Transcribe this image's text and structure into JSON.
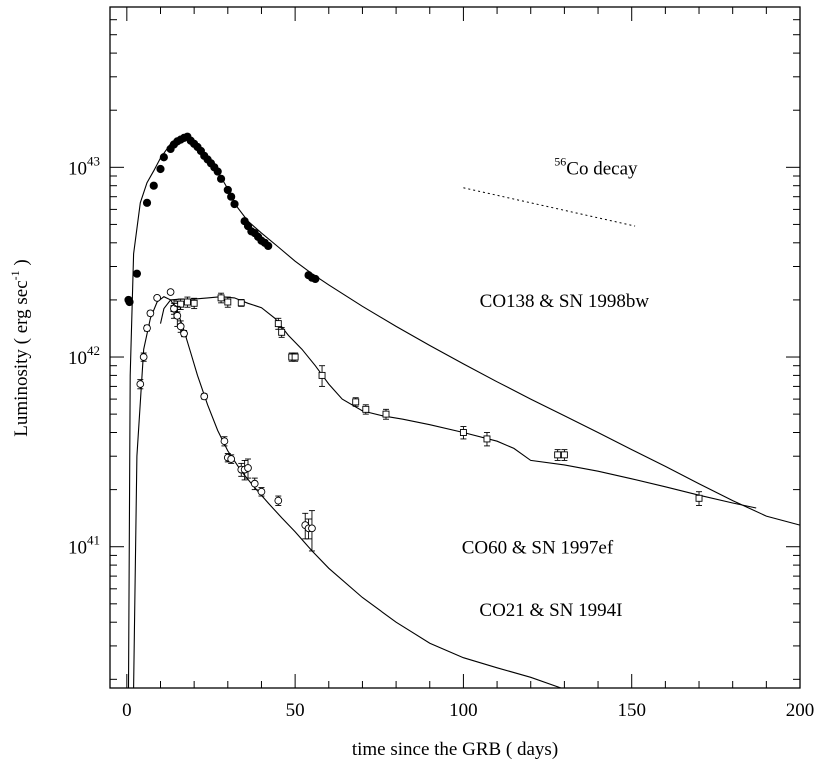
{
  "chart_data": {
    "type": "scatter",
    "xlabel": "time since the GRB ( days)",
    "ylabel": "Luminosity ( erg sec",
    "ylabel_sup": "-1",
    "ylabel_end": " )",
    "x_ticks": [
      0,
      50,
      100,
      150,
      200
    ],
    "x_ticklabels": [
      "0",
      "50",
      "100",
      "150",
      "200"
    ],
    "y_ticks": [
      1e+41,
      1e+42,
      1e+43
    ],
    "y_ticklabels": [
      {
        "base": "10",
        "exp": "41"
      },
      {
        "base": "10",
        "exp": "42"
      },
      {
        "base": "10",
        "exp": "43"
      }
    ],
    "xlim": [
      -5,
      200
    ],
    "ylim": [
      1.8e+40,
      7e+43
    ],
    "yscale": "log",
    "grid": false,
    "annotations": [
      {
        "text": "CO138 & SN 1998bw",
        "x": 130,
        "y": 2e+42
      },
      {
        "text": "CO60 & SN 1997ef",
        "x": 122,
        "y": 1e+41
      },
      {
        "text": "CO21 & SN 1994I",
        "x": 126,
        "y": 4.7e+40
      }
    ],
    "decay_label": {
      "sup": "56",
      "text": "Co decay",
      "x": 127,
      "y": 1e+43
    },
    "decay_line": {
      "x": [
        100,
        151
      ],
      "y": [
        7.8e+42,
        4.9e+42
      ]
    },
    "series": [
      {
        "marker": "filled-circle",
        "model": [
          [
            0.5,
            1e+40
          ],
          [
            1,
            8e+41
          ],
          [
            2,
            3.5e+42
          ],
          [
            4,
            6.5e+42
          ],
          [
            6,
            8.3e+42
          ],
          [
            8,
            9.6e+42
          ],
          [
            10,
            1.12e+43
          ],
          [
            13,
            1.33e+43
          ],
          [
            16,
            1.45e+43
          ],
          [
            18,
            1.47e+43
          ],
          [
            20,
            1.38e+43
          ],
          [
            23,
            1.2e+43
          ],
          [
            27,
            9.5e+42
          ],
          [
            30,
            7.7e+42
          ],
          [
            33,
            6.1e+42
          ],
          [
            36,
            5.2e+42
          ],
          [
            40,
            4.5e+42
          ],
          [
            45,
            3.8e+42
          ],
          [
            50,
            3.2e+42
          ],
          [
            55,
            2.75e+42
          ],
          [
            60,
            2.4e+42
          ],
          [
            70,
            1.85e+42
          ],
          [
            80,
            1.45e+42
          ],
          [
            90,
            1.15e+42
          ],
          [
            100,
            9.2e+41
          ],
          [
            110,
            7.4e+41
          ],
          [
            120,
            6e+41
          ],
          [
            130,
            4.9e+41
          ],
          [
            140,
            4e+41
          ],
          [
            150,
            3.25e+41
          ],
          [
            160,
            2.65e+41
          ],
          [
            170,
            2.15e+41
          ],
          [
            180,
            1.75e+41
          ],
          [
            190,
            1.45e+41
          ],
          [
            200,
            1.3e+41
          ]
        ],
        "points": [
          [
            0.5,
            2e+42
          ],
          [
            0.8,
            1.95e+42
          ],
          [
            3,
            2.75e+42
          ],
          [
            6,
            6.5e+42
          ],
          [
            8,
            8e+42
          ],
          [
            10,
            9.8e+42
          ],
          [
            11,
            1.13e+43
          ],
          [
            13,
            1.25e+43
          ],
          [
            14,
            1.32e+43
          ],
          [
            15,
            1.37e+43
          ],
          [
            16,
            1.4e+43
          ],
          [
            17,
            1.43e+43
          ],
          [
            18,
            1.45e+43
          ],
          [
            19,
            1.38e+43
          ],
          [
            20,
            1.33e+43
          ],
          [
            21,
            1.28e+43
          ],
          [
            22,
            1.22e+43
          ],
          [
            23,
            1.15e+43
          ],
          [
            24,
            1.1e+43
          ],
          [
            25,
            1.05e+43
          ],
          [
            26,
            1e+43
          ],
          [
            27,
            9.5e+42
          ],
          [
            28,
            8.7e+42
          ],
          [
            30,
            7.6e+42
          ],
          [
            31,
            7e+42
          ],
          [
            32,
            6.4e+42
          ],
          [
            35,
            5.2e+42
          ],
          [
            36,
            4.9e+42
          ],
          [
            37,
            4.6e+42
          ],
          [
            38,
            4.5e+42
          ],
          [
            39,
            4.3e+42
          ],
          [
            40,
            4.1e+42
          ],
          [
            41,
            4e+42
          ],
          [
            42,
            3.85e+42
          ],
          [
            54,
            2.7e+42
          ],
          [
            55,
            2.62e+42
          ],
          [
            56,
            2.58e+42
          ]
        ]
      },
      {
        "marker": "open-square",
        "model": [
          [
            10,
            1.5e+42
          ],
          [
            11,
            1.8e+42
          ],
          [
            13,
            2e+42
          ],
          [
            16,
            2.02e+42
          ],
          [
            20,
            2.02e+42
          ],
          [
            24,
            2.05e+42
          ],
          [
            28,
            2.08e+42
          ],
          [
            32,
            2.05e+42
          ],
          [
            36,
            1.92e+42
          ],
          [
            40,
            1.82e+42
          ],
          [
            44,
            1.6e+42
          ],
          [
            48,
            1.3e+42
          ],
          [
            52,
            1.1e+42
          ],
          [
            56,
            9e+41
          ],
          [
            60,
            7.2e+41
          ],
          [
            64,
            6e+41
          ],
          [
            70,
            5.2e+41
          ],
          [
            76,
            4.9e+41
          ],
          [
            82,
            4.7e+41
          ],
          [
            90,
            4.4e+41
          ],
          [
            100,
            4e+41
          ],
          [
            110,
            3.6e+41
          ],
          [
            115,
            3.3e+41
          ],
          [
            120,
            2.85e+41
          ],
          [
            130,
            2.7e+41
          ],
          [
            140,
            2.5e+41
          ],
          [
            150,
            2.28e+41
          ],
          [
            160,
            2.07e+41
          ],
          [
            170,
            1.87e+41
          ],
          [
            180,
            1.7e+41
          ],
          [
            187,
            1.6e+41
          ]
        ],
        "points": [
          [
            14,
            1.8e+42,
            1.2e+41
          ],
          [
            15,
            1.85e+42,
            1.2e+41
          ],
          [
            16,
            1.9e+42,
            1.2e+41
          ],
          [
            18,
            1.95e+42,
            1.2e+41
          ],
          [
            20,
            1.92e+42,
            1.2e+41
          ],
          [
            28,
            2.05e+42,
            1.2e+41
          ],
          [
            30,
            1.95e+42,
            1.2e+41
          ],
          [
            34,
            1.93e+42,
            8e+40
          ],
          [
            45,
            1.5e+42,
            1e+41
          ],
          [
            46,
            1.35e+42,
            8e+40
          ],
          [
            49,
            1e+42,
            5e+40
          ],
          [
            50,
            1e+42,
            5e+40
          ],
          [
            58,
            8e+41,
            1e+41
          ],
          [
            68,
            5.8e+41,
            3e+40
          ],
          [
            71,
            5.3e+41,
            3e+40
          ],
          [
            77,
            5e+41,
            3e+40
          ],
          [
            100,
            4e+41,
            3e+40
          ],
          [
            107,
            3.7e+41,
            3e+40
          ],
          [
            128,
            3.05e+41,
            2e+40
          ],
          [
            130,
            3.05e+41,
            2e+40
          ],
          [
            170,
            1.8e+41,
            1.5e+40
          ]
        ]
      },
      {
        "marker": "open-circle",
        "model": [
          [
            2,
            1e+40
          ],
          [
            3,
            3e+41
          ],
          [
            5,
            1.1e+42
          ],
          [
            7,
            1.6e+42
          ],
          [
            9,
            1.95e+42
          ],
          [
            11,
            2.08e+42
          ],
          [
            13,
            2e+42
          ],
          [
            15,
            1.75e+42
          ],
          [
            17,
            1.38e+42
          ],
          [
            19,
            1.05e+42
          ],
          [
            21,
            8e+41
          ],
          [
            24,
            5.6e+41
          ],
          [
            27,
            4.1e+41
          ],
          [
            30,
            3.2e+41
          ],
          [
            34,
            2.5e+41
          ],
          [
            38,
            2.05e+41
          ],
          [
            42,
            1.7e+41
          ],
          [
            46,
            1.42e+41
          ],
          [
            50,
            1.2e+41
          ],
          [
            55,
            9.5e+40
          ],
          [
            60,
            7.7e+40
          ],
          [
            70,
            5.4e+40
          ],
          [
            80,
            4e+40
          ],
          [
            90,
            3.1e+40
          ],
          [
            100,
            2.6e+40
          ],
          [
            110,
            2.3e+40
          ],
          [
            120,
            2.05e+40
          ],
          [
            129,
            1.8e+40
          ]
        ],
        "points": [
          [
            4,
            7.2e+41,
            4e+40
          ],
          [
            5,
            1e+42,
            5e+40
          ],
          [
            6,
            1.42e+42,
            5e+40
          ],
          [
            7,
            1.7e+42,
            5e+40
          ],
          [
            9,
            2.05e+42,
            5e+40
          ],
          [
            13,
            2.2e+42,
            5e+40
          ],
          [
            14,
            1.8e+42,
            2e+41
          ],
          [
            15,
            1.65e+42,
            2e+41
          ],
          [
            16,
            1.45e+42,
            1e+41
          ],
          [
            17,
            1.33e+42,
            5e+40
          ],
          [
            23,
            6.2e+41,
            2e+40
          ],
          [
            29,
            3.6e+41,
            2e+40
          ],
          [
            30,
            2.95e+41,
            1.5e+40
          ],
          [
            31,
            2.9e+41,
            1.5e+40
          ],
          [
            34,
            2.55e+41,
            2e+40
          ],
          [
            35,
            2.55e+41,
            3e+40
          ],
          [
            36,
            2.6e+41,
            3e+40
          ],
          [
            38,
            2.15e+41,
            1.5e+40
          ],
          [
            40,
            1.95e+41,
            1e+40
          ],
          [
            45,
            1.75e+41,
            1e+40
          ],
          [
            53,
            1.3e+41,
            2e+40
          ],
          [
            54,
            1.25e+41,
            1.5e+40
          ],
          [
            55,
            1.25e+41,
            3e+40
          ]
        ]
      }
    ]
  }
}
